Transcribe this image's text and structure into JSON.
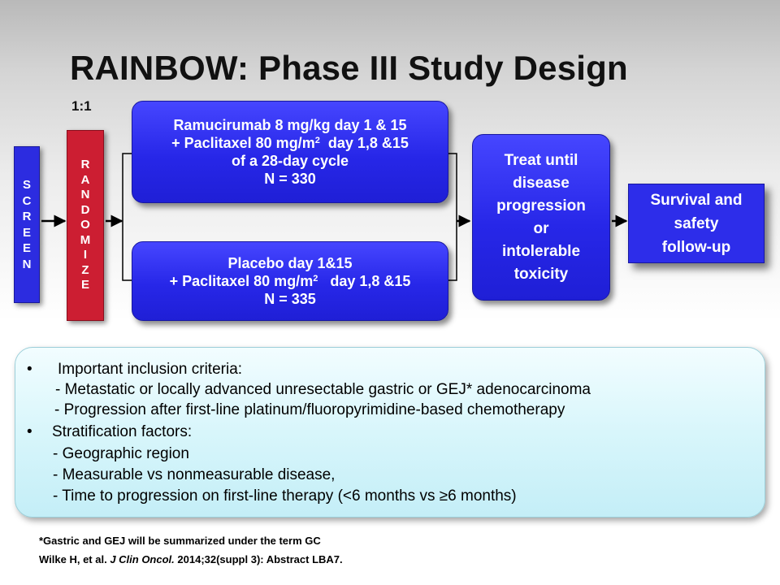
{
  "slide": {
    "title": "RAINBOW: Phase III Study Design",
    "ratio_label": "1:1"
  },
  "screen": {
    "letters": [
      "S",
      "C",
      "R",
      "E",
      "E",
      "N"
    ]
  },
  "randomize": {
    "letters": [
      "R",
      "A",
      "N",
      "D",
      "O",
      "M",
      "I",
      "Z",
      "E"
    ]
  },
  "arm1": {
    "line1": "Ramucirumab 8 mg/kg day 1 & 15",
    "line2_pre": "+ Paclitaxel 80 mg/m",
    "line2_sup": "2",
    "line2_post": "  day 1,8 &15",
    "line3": "of a 28-day cycle",
    "line4": "N = 330"
  },
  "arm2": {
    "line1": "Placebo day 1&15",
    "line2_pre": "+ Paclitaxel 80 mg/m",
    "line2_sup": "2",
    "line2_post": "   day 1,8 &15",
    "line3": "N = 335"
  },
  "treat": {
    "lines": [
      "Treat until",
      "disease",
      "progression",
      "or",
      "intolerable",
      "toxicity"
    ]
  },
  "followup": {
    "lines": [
      "Survival and",
      "safety",
      "follow-up"
    ]
  },
  "criteria": {
    "bullet": "•",
    "heading1": "Important inclusion criteria:",
    "item1": "- Metastatic or locally advanced unresectable  gastric or GEJ* adenocarcinoma",
    "item2": "- Progression after first-line platinum/fluoropyrimidine-based  chemotherapy",
    "heading2": "Stratification factors:",
    "item3": "- Geographic region",
    "item4": "- Measurable vs nonmeasurable disease,",
    "item5": "- Time to progression on first-line therapy (<6 months vs ≥6 months)"
  },
  "footnotes": {
    "note": "*Gastric and GEJ will be summarized under the term GC",
    "cite_authors": "Wilke H, et al. ",
    "cite_journal": "J Clin Oncol.",
    "cite_rest": " 2014;32(suppl 3): Abstract LBA7."
  },
  "colors": {
    "box_blue": "#2727e8",
    "randomize_red": "#cc1e32",
    "criteria_bg": "#d8f6fb"
  }
}
